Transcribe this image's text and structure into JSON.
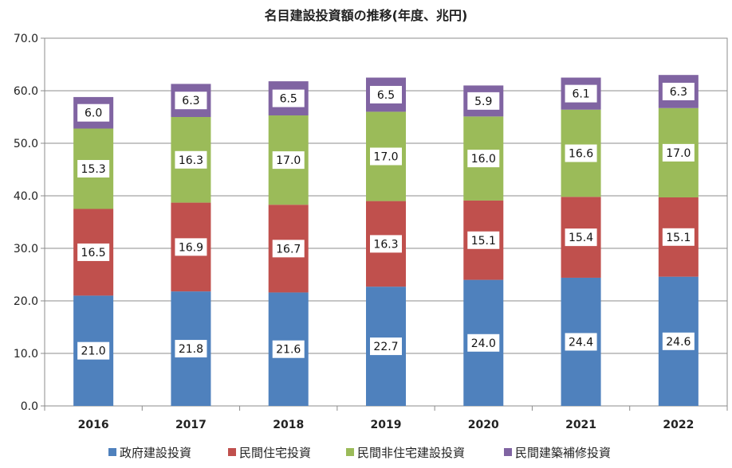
{
  "chart_data": {
    "type": "bar",
    "stacked": true,
    "title": "名目建設投資額の推移(年度、兆円)",
    "categories": [
      "2016",
      "2017",
      "2018",
      "2019",
      "2020",
      "2021",
      "2022"
    ],
    "ylim": [
      0,
      70
    ],
    "y_ticks": [
      "0.0",
      "10.0",
      "20.0",
      "30.0",
      "40.0",
      "50.0",
      "60.0",
      "70.0"
    ],
    "grid": true,
    "legend_position": "bottom",
    "series": [
      {
        "name": "政府建設投資",
        "color": "#4F81BD",
        "values": [
          21.0,
          21.8,
          21.6,
          22.7,
          24.0,
          24.4,
          24.6
        ],
        "labels": [
          "21.0",
          "21.8",
          "21.6",
          "22.7",
          "24.0",
          "24.4",
          "24.6"
        ]
      },
      {
        "name": "民間住宅投資",
        "color": "#C0504D",
        "values": [
          16.5,
          16.9,
          16.7,
          16.3,
          15.1,
          15.4,
          15.1
        ],
        "labels": [
          "16.5",
          "16.9",
          "16.7",
          "16.3",
          "15.1",
          "15.4",
          "15.1"
        ]
      },
      {
        "name": "民間非住宅建設投資",
        "color": "#9BBB59",
        "values": [
          15.3,
          16.3,
          17.0,
          17.0,
          16.0,
          16.6,
          17.0
        ],
        "labels": [
          "15.3",
          "16.3",
          "17.0",
          "17.0",
          "16.0",
          "16.6",
          "17.0"
        ]
      },
      {
        "name": "民間建築補修投資",
        "color": "#8064A2",
        "values": [
          6.0,
          6.3,
          6.5,
          6.5,
          5.9,
          6.1,
          6.3
        ],
        "labels": [
          "6.0",
          "6.3",
          "6.5",
          "6.5",
          "5.9",
          "6.1",
          "6.3"
        ]
      }
    ]
  }
}
